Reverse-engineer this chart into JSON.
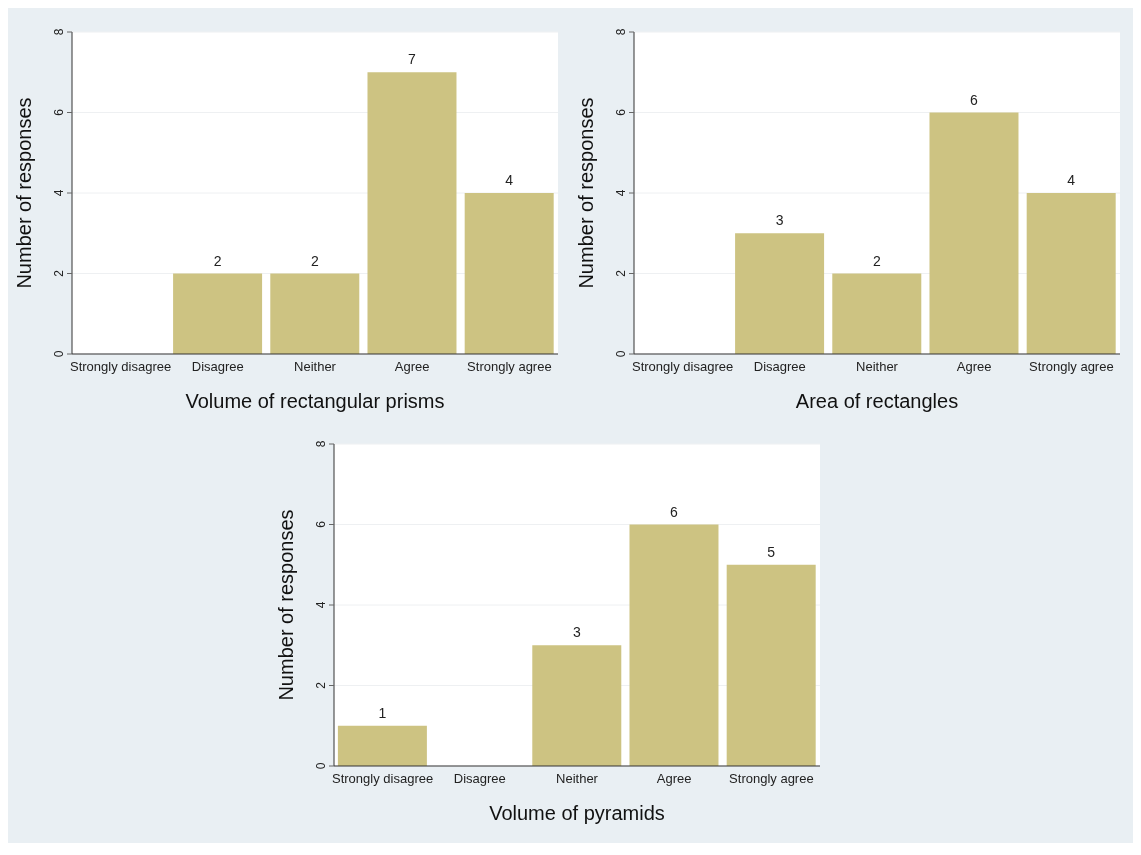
{
  "chart_data": [
    {
      "type": "bar",
      "xlabel": "Volume of rectangular prisms",
      "ylabel": "Number of responses",
      "categories": [
        "Strongly disagree",
        "Disagree",
        "Neither",
        "Agree",
        "Strongly agree"
      ],
      "values": [
        0,
        2,
        2,
        7,
        4
      ],
      "value_labels": [
        null,
        "2",
        "2",
        "7",
        "4"
      ],
      "color": "#cdc382",
      "ylim": [
        0,
        8
      ],
      "yticks": [
        0,
        2,
        4,
        6,
        8
      ],
      "grid": "y"
    },
    {
      "type": "bar",
      "xlabel": "Area of rectangles",
      "ylabel": "Number of responses",
      "categories": [
        "Strongly disagree",
        "Disagree",
        "Neither",
        "Agree",
        "Strongly agree"
      ],
      "values": [
        0,
        3,
        2,
        6,
        4
      ],
      "value_labels": [
        null,
        "3",
        "2",
        "6",
        "4"
      ],
      "color": "#cdc382",
      "ylim": [
        0,
        8
      ],
      "yticks": [
        0,
        2,
        4,
        6,
        8
      ],
      "grid": "y"
    },
    {
      "type": "bar",
      "xlabel": "Volume of pyramids",
      "ylabel": "Number of responses",
      "categories": [
        "Strongly disagree",
        "Disagree",
        "Neither",
        "Agree",
        "Strongly agree"
      ],
      "values": [
        1,
        0,
        3,
        6,
        5
      ],
      "value_labels": [
        "1",
        null,
        "3",
        "6",
        "5"
      ],
      "color": "#cdc382",
      "ylim": [
        0,
        8
      ],
      "yticks": [
        0,
        2,
        4,
        6,
        8
      ],
      "grid": "y"
    }
  ]
}
